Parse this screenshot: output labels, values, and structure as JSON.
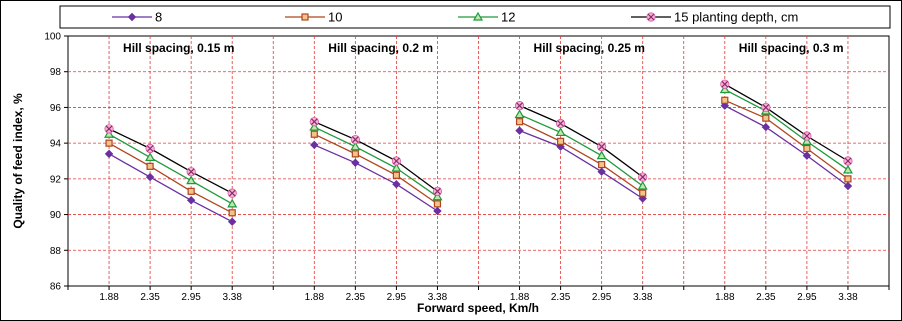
{
  "chart_data": {
    "type": "line",
    "xlabel": "Forward speed, Km/h",
    "ylabel": "Quality of feed index, %",
    "ylim": [
      86,
      100
    ],
    "yticks": [
      86,
      88,
      90,
      92,
      94,
      96,
      98,
      100
    ],
    "grid": true,
    "legend_position": "top",
    "categories": [
      "1.88",
      "2.35",
      "2.95",
      "3.38"
    ],
    "series_styles": [
      {
        "label": "8",
        "color": "#6a2fa0",
        "marker": "diamond"
      },
      {
        "label": "10",
        "color": "#b0461e",
        "marker": "square"
      },
      {
        "label": "12",
        "color": "#1f9a3a",
        "marker": "triangle"
      },
      {
        "label": "15 planting depth, cm",
        "color": "#000000",
        "marker": "x"
      }
    ],
    "panels": [
      {
        "label": "Hill spacing, 0.15 m",
        "series": [
          {
            "name": "8",
            "values": [
              93.4,
              92.1,
              90.8,
              89.6
            ]
          },
          {
            "name": "10",
            "values": [
              94.0,
              92.7,
              91.3,
              90.1
            ]
          },
          {
            "name": "12",
            "values": [
              94.5,
              93.2,
              91.9,
              90.6
            ]
          },
          {
            "name": "15 planting depth, cm",
            "values": [
              94.8,
              93.7,
              92.4,
              91.2
            ]
          }
        ]
      },
      {
        "label": "Hill spacing, 0.2 m",
        "series": [
          {
            "name": "8",
            "values": [
              93.9,
              92.9,
              91.7,
              90.2
            ]
          },
          {
            "name": "10",
            "values": [
              94.5,
              93.4,
              92.2,
              90.6
            ]
          },
          {
            "name": "12",
            "values": [
              94.9,
              93.8,
              92.6,
              91.0
            ]
          },
          {
            "name": "15 planting depth, cm",
            "values": [
              95.2,
              94.2,
              93.0,
              91.3
            ]
          }
        ]
      },
      {
        "label": "Hill spacing, 0.25 m",
        "series": [
          {
            "name": "8",
            "values": [
              94.7,
              93.8,
              92.4,
              90.9
            ]
          },
          {
            "name": "10",
            "values": [
              95.2,
              94.1,
              92.8,
              91.2
            ]
          },
          {
            "name": "12",
            "values": [
              95.6,
              94.6,
              93.3,
              91.6
            ]
          },
          {
            "name": "15 planting depth, cm",
            "values": [
              96.1,
              95.1,
              93.8,
              92.1
            ]
          }
        ]
      },
      {
        "label": "Hill spacing, 0.3 m",
        "series": [
          {
            "name": "8",
            "values": [
              96.1,
              94.9,
              93.3,
              91.6
            ]
          },
          {
            "name": "10",
            "values": [
              96.4,
              95.4,
              93.7,
              92.0
            ]
          },
          {
            "name": "12",
            "values": [
              97.0,
              95.8,
              94.1,
              92.5
            ]
          },
          {
            "name": "15 planting depth, cm",
            "values": [
              97.3,
              96.0,
              94.4,
              93.0
            ]
          }
        ]
      }
    ]
  }
}
